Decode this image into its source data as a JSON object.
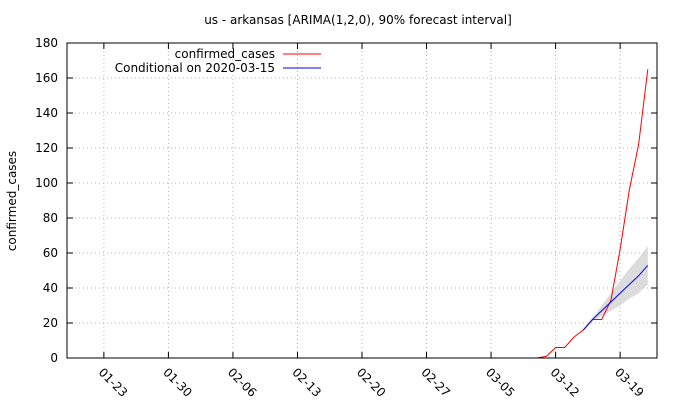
{
  "chart_data": {
    "type": "line",
    "title": "us - arkansas [ARIMA(1,2,0), 90% forecast interval]",
    "xlabel": "",
    "ylabel": "confirmed_cases",
    "ylim": [
      0,
      180
    ],
    "yticks": [
      0,
      20,
      40,
      60,
      80,
      100,
      120,
      140,
      160,
      180
    ],
    "xlim": [
      "2020-01-19",
      "2020-03-23"
    ],
    "xticks": [
      {
        "date": "2020-01-23",
        "label": "01-23"
      },
      {
        "date": "2020-01-30",
        "label": "01-30"
      },
      {
        "date": "2020-02-06",
        "label": "02-06"
      },
      {
        "date": "2020-02-13",
        "label": "02-13"
      },
      {
        "date": "2020-02-20",
        "label": "02-20"
      },
      {
        "date": "2020-02-27",
        "label": "02-27"
      },
      {
        "date": "2020-03-05",
        "label": "03-05"
      },
      {
        "date": "2020-03-12",
        "label": "03-12"
      },
      {
        "date": "2020-03-19",
        "label": "03-19"
      }
    ],
    "grid": true,
    "legend_position": "top-left",
    "series": [
      {
        "name": "confirmed_cases",
        "color": "#ff0000",
        "x": [
          "2020-01-22",
          "2020-01-23",
          "2020-01-24",
          "2020-01-25",
          "2020-01-26",
          "2020-01-27",
          "2020-01-28",
          "2020-01-29",
          "2020-01-30",
          "2020-01-31",
          "2020-02-01",
          "2020-02-02",
          "2020-02-03",
          "2020-02-04",
          "2020-02-05",
          "2020-02-06",
          "2020-02-07",
          "2020-02-08",
          "2020-02-09",
          "2020-02-10",
          "2020-02-11",
          "2020-02-12",
          "2020-02-13",
          "2020-02-14",
          "2020-02-15",
          "2020-02-16",
          "2020-02-17",
          "2020-02-18",
          "2020-02-19",
          "2020-02-20",
          "2020-02-21",
          "2020-02-22",
          "2020-02-23",
          "2020-02-24",
          "2020-02-25",
          "2020-02-26",
          "2020-02-27",
          "2020-02-28",
          "2020-02-29",
          "2020-03-01",
          "2020-03-02",
          "2020-03-03",
          "2020-03-04",
          "2020-03-05",
          "2020-03-06",
          "2020-03-07",
          "2020-03-08",
          "2020-03-09",
          "2020-03-10",
          "2020-03-11",
          "2020-03-12",
          "2020-03-13",
          "2020-03-14",
          "2020-03-15",
          "2020-03-16",
          "2020-03-17",
          "2020-03-18",
          "2020-03-19",
          "2020-03-20",
          "2020-03-21",
          "2020-03-22"
        ],
        "y": [
          0,
          0,
          0,
          0,
          0,
          0,
          0,
          0,
          0,
          0,
          0,
          0,
          0,
          0,
          0,
          0,
          0,
          0,
          0,
          0,
          0,
          0,
          0,
          0,
          0,
          0,
          0,
          0,
          0,
          0,
          0,
          0,
          0,
          0,
          0,
          0,
          0,
          0,
          0,
          0,
          0,
          0,
          0,
          0,
          0,
          0,
          0,
          0,
          0,
          1,
          6,
          6,
          12,
          16,
          22,
          22,
          33,
          62,
          96,
          122,
          165
        ]
      },
      {
        "name": "Conditional on 2020-03-15",
        "color": "#0000ff",
        "x": [
          "2020-03-15",
          "2020-03-16",
          "2020-03-17",
          "2020-03-18",
          "2020-03-19",
          "2020-03-20",
          "2020-03-21",
          "2020-03-22"
        ],
        "y": [
          16,
          22,
          27,
          32,
          37,
          42,
          47,
          53
        ],
        "lower": [
          16,
          21,
          24,
          27,
          30,
          34,
          37,
          42
        ],
        "upper": [
          16,
          23,
          30,
          37,
          44,
          51,
          57,
          64
        ]
      }
    ]
  }
}
